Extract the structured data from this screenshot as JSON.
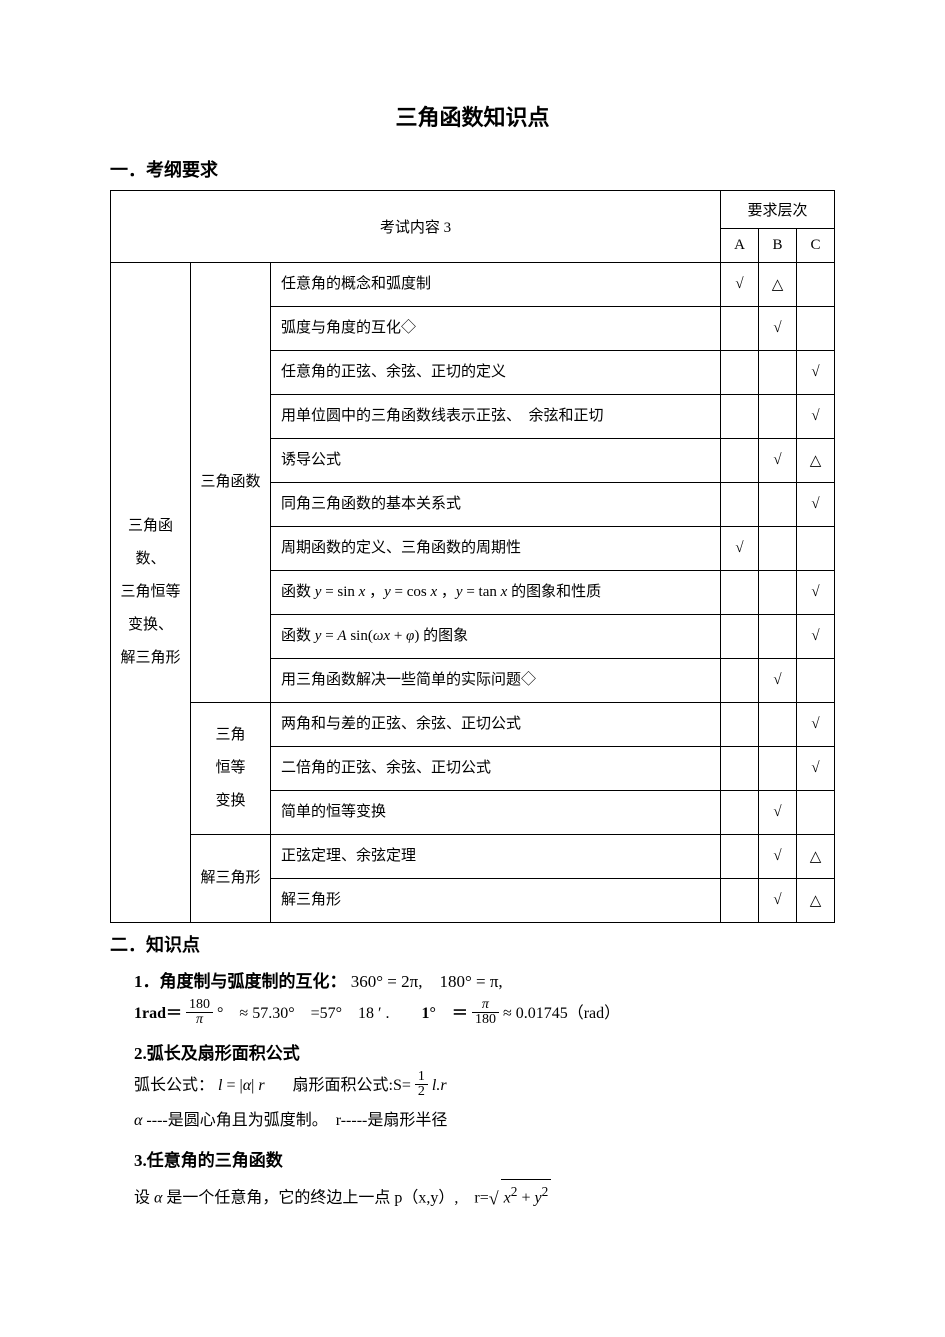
{
  "title": "三角函数知识点",
  "section1_heading": "一．考纲要求",
  "table": {
    "header_content": "考试内容 3",
    "header_level": "要求层次",
    "levels": [
      "A",
      "B",
      "C"
    ],
    "group_main": "三角函数、\n三角恒等\n变换、\n解三角形",
    "sub_groups": [
      {
        "name": "三角函数",
        "rowspan": 10
      },
      {
        "name": "三角\n恒等\n变换",
        "rowspan": 3
      },
      {
        "name": "解三角形",
        "rowspan": 2
      }
    ],
    "rows": [
      {
        "content": "任意角的概念和弧度制",
        "a": "√",
        "b": "△",
        "c": ""
      },
      {
        "content": "弧度与角度的互化◇",
        "a": "",
        "b": "√",
        "c": ""
      },
      {
        "content": "任意角的正弦、余弦、正切的定义",
        "a": "",
        "b": "",
        "c": "√"
      },
      {
        "content": "用单位圆中的三角函数线表示正弦、　余弦和正切",
        "a": "",
        "b": "",
        "c": "√"
      },
      {
        "content": "诱导公式",
        "a": "",
        "b": "√",
        "c": "△"
      },
      {
        "content": "同角三角函数的基本关系式",
        "a": "",
        "b": "",
        "c": "√"
      },
      {
        "content": "周期函数的定义、三角函数的周期性",
        "a": "√",
        "b": "",
        "c": ""
      },
      {
        "content_html": "函数 <span class='ital'>y</span> = sin <span class='ital'>x</span> ，<span class='ital'>y</span> = cos <span class='ital'>x</span> ，<span class='ital'>y</span> = tan <span class='ital'>x</span> 的图象和性质",
        "a": "",
        "b": "",
        "c": "√"
      },
      {
        "content_html": "函数 <span class='ital'>y</span> = <span class='ital'>A</span> sin(<span class='ital'>ωx</span> + <span class='ital'>φ</span>) 的图象",
        "a": "",
        "b": "",
        "c": "√"
      },
      {
        "content": "用三角函数解决一些简单的实际问题◇",
        "a": "",
        "b": "√",
        "c": ""
      },
      {
        "content": "两角和与差的正弦、余弦、正切公式",
        "a": "",
        "b": "",
        "c": "√"
      },
      {
        "content": "二倍角的正弦、余弦、正切公式",
        "a": "",
        "b": "",
        "c": "√"
      },
      {
        "content": "简单的恒等变换",
        "a": "",
        "b": "√",
        "c": ""
      },
      {
        "content": "正弦定理、余弦定理",
        "a": "",
        "b": "√",
        "c": "△"
      },
      {
        "content": "解三角形",
        "a": "",
        "b": "√",
        "c": "△"
      }
    ]
  },
  "section2_heading": "二．知识点",
  "point1_heading": "1．角度制与弧度制的互化：",
  "point1_a": "360° = 2π,　180° = π,",
  "point1_b_prefix": "1rad＝",
  "point1_b_frac_num": "180",
  "point1_b_frac_den": "π",
  "point1_b_rest": "°　≈ 57.30°　=57°　18 ′ .",
  "point1_c_prefix": "1°　＝",
  "point1_c_frac_num": "π",
  "point1_c_frac_den": "180",
  "point1_c_rest": "≈ 0.01745（rad）",
  "point2_heading": "2.弧长及扇形面积公式",
  "point2_arc_prefix": "弧长公式：",
  "point2_arc_formula": "<span class='ital'>l</span> = |<span class='ital'>α</span>| <span class='ital'>r</span>",
  "point2_area_prefix": "扇形面积公式:S=",
  "point2_area_frac_num": "1",
  "point2_area_frac_den": "2",
  "point2_area_rest": "<span class='ital'>l.r</span>",
  "point2_note": "<span class='ital'>α</span> ----是圆心角且为弧度制。　r-----是扇形半径",
  "point3_heading": "3.任意角的三角函数",
  "point3_line_prefix": "设 <span class='ital'>α</span> 是一个任意角，它的终边上一点 p（x,y）,　r=",
  "point3_sqrt": "<span class='ital'>x</span><sup>2</sup> + <span class='ital'>y</span><sup>2</sup>"
}
